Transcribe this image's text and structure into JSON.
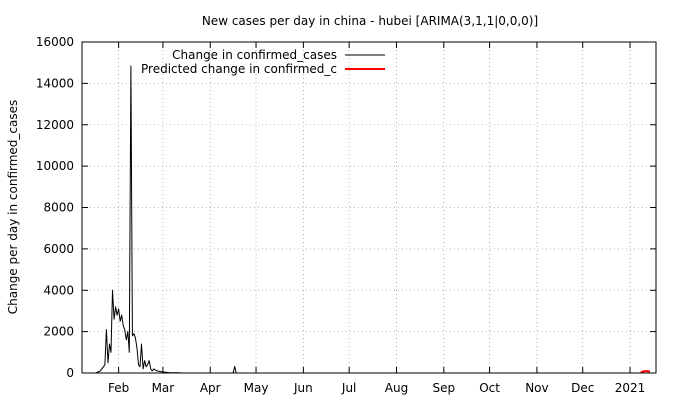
{
  "chart_data": {
    "type": "line",
    "title": "New cases per day in china - hubei [ARIMA(3,1,1|0,0,0)]",
    "xlabel": "",
    "ylabel": "Change per day in confirmed_cases",
    "x_axis": {
      "type": "date",
      "range": [
        "2020-01-08",
        "2021-01-18"
      ],
      "ticks": [
        {
          "date": "2020-02-01",
          "label": "Feb"
        },
        {
          "date": "2020-03-01",
          "label": "Mar"
        },
        {
          "date": "2020-04-01",
          "label": "Apr"
        },
        {
          "date": "2020-05-01",
          "label": "May"
        },
        {
          "date": "2020-06-01",
          "label": "Jun"
        },
        {
          "date": "2020-07-01",
          "label": "Jul"
        },
        {
          "date": "2020-08-01",
          "label": "Aug"
        },
        {
          "date": "2020-09-01",
          "label": "Sep"
        },
        {
          "date": "2020-10-01",
          "label": "Oct"
        },
        {
          "date": "2020-11-01",
          "label": "Nov"
        },
        {
          "date": "2020-12-01",
          "label": "Dec"
        },
        {
          "date": "2021-01-01",
          "label": "2021"
        }
      ]
    },
    "y_axis": {
      "range": [
        0,
        16000
      ],
      "ticks": [
        0,
        2000,
        4000,
        6000,
        8000,
        10000,
        12000,
        14000,
        16000
      ]
    },
    "grid": true,
    "legend_position": "top-left",
    "series": [
      {
        "name": "Change in confirmed_cases",
        "color": "#000000",
        "points": [
          [
            "2020-01-17",
            0
          ],
          [
            "2020-01-20",
            100
          ],
          [
            "2020-01-22",
            300
          ],
          [
            "2020-01-23",
            400
          ],
          [
            "2020-01-24",
            2100
          ],
          [
            "2020-01-25",
            500
          ],
          [
            "2020-01-26",
            1400
          ],
          [
            "2020-01-27",
            1000
          ],
          [
            "2020-01-28",
            4000
          ],
          [
            "2020-01-29",
            2600
          ],
          [
            "2020-01-30",
            3200
          ],
          [
            "2020-01-31",
            2800
          ],
          [
            "2020-02-01",
            3100
          ],
          [
            "2020-02-02",
            2500
          ],
          [
            "2020-02-03",
            2800
          ],
          [
            "2020-02-04",
            2300
          ],
          [
            "2020-02-05",
            2100
          ],
          [
            "2020-02-06",
            1600
          ],
          [
            "2020-02-07",
            2000
          ],
          [
            "2020-02-08",
            1000
          ],
          [
            "2020-02-09",
            14840
          ],
          [
            "2020-02-10",
            1800
          ],
          [
            "2020-02-11",
            1900
          ],
          [
            "2020-02-12",
            1700
          ],
          [
            "2020-02-13",
            1200
          ],
          [
            "2020-02-14",
            400
          ],
          [
            "2020-02-15",
            300
          ],
          [
            "2020-02-16",
            1400
          ],
          [
            "2020-02-17",
            200
          ],
          [
            "2020-02-18",
            600
          ],
          [
            "2020-02-19",
            300
          ],
          [
            "2020-02-20",
            400
          ],
          [
            "2020-02-21",
            600
          ],
          [
            "2020-02-22",
            200
          ],
          [
            "2020-02-23",
            100
          ],
          [
            "2020-02-24",
            200
          ],
          [
            "2020-02-26",
            100
          ],
          [
            "2020-03-01",
            50
          ],
          [
            "2020-03-05",
            20
          ],
          [
            "2020-03-10",
            10
          ],
          [
            "2020-03-15",
            0
          ],
          [
            "2020-04-16",
            0
          ],
          [
            "2020-04-17",
            320
          ],
          [
            "2020-04-18",
            0
          ],
          [
            "2021-01-14",
            0
          ]
        ]
      },
      {
        "name": "Predicted change in confirmed_c",
        "color": "#ff0000",
        "points": [
          [
            "2021-01-08",
            30
          ],
          [
            "2021-01-09",
            60
          ],
          [
            "2021-01-10",
            80
          ],
          [
            "2021-01-11",
            90
          ],
          [
            "2021-01-12",
            90
          ],
          [
            "2021-01-13",
            80
          ],
          [
            "2021-01-14",
            70
          ]
        ]
      }
    ]
  }
}
